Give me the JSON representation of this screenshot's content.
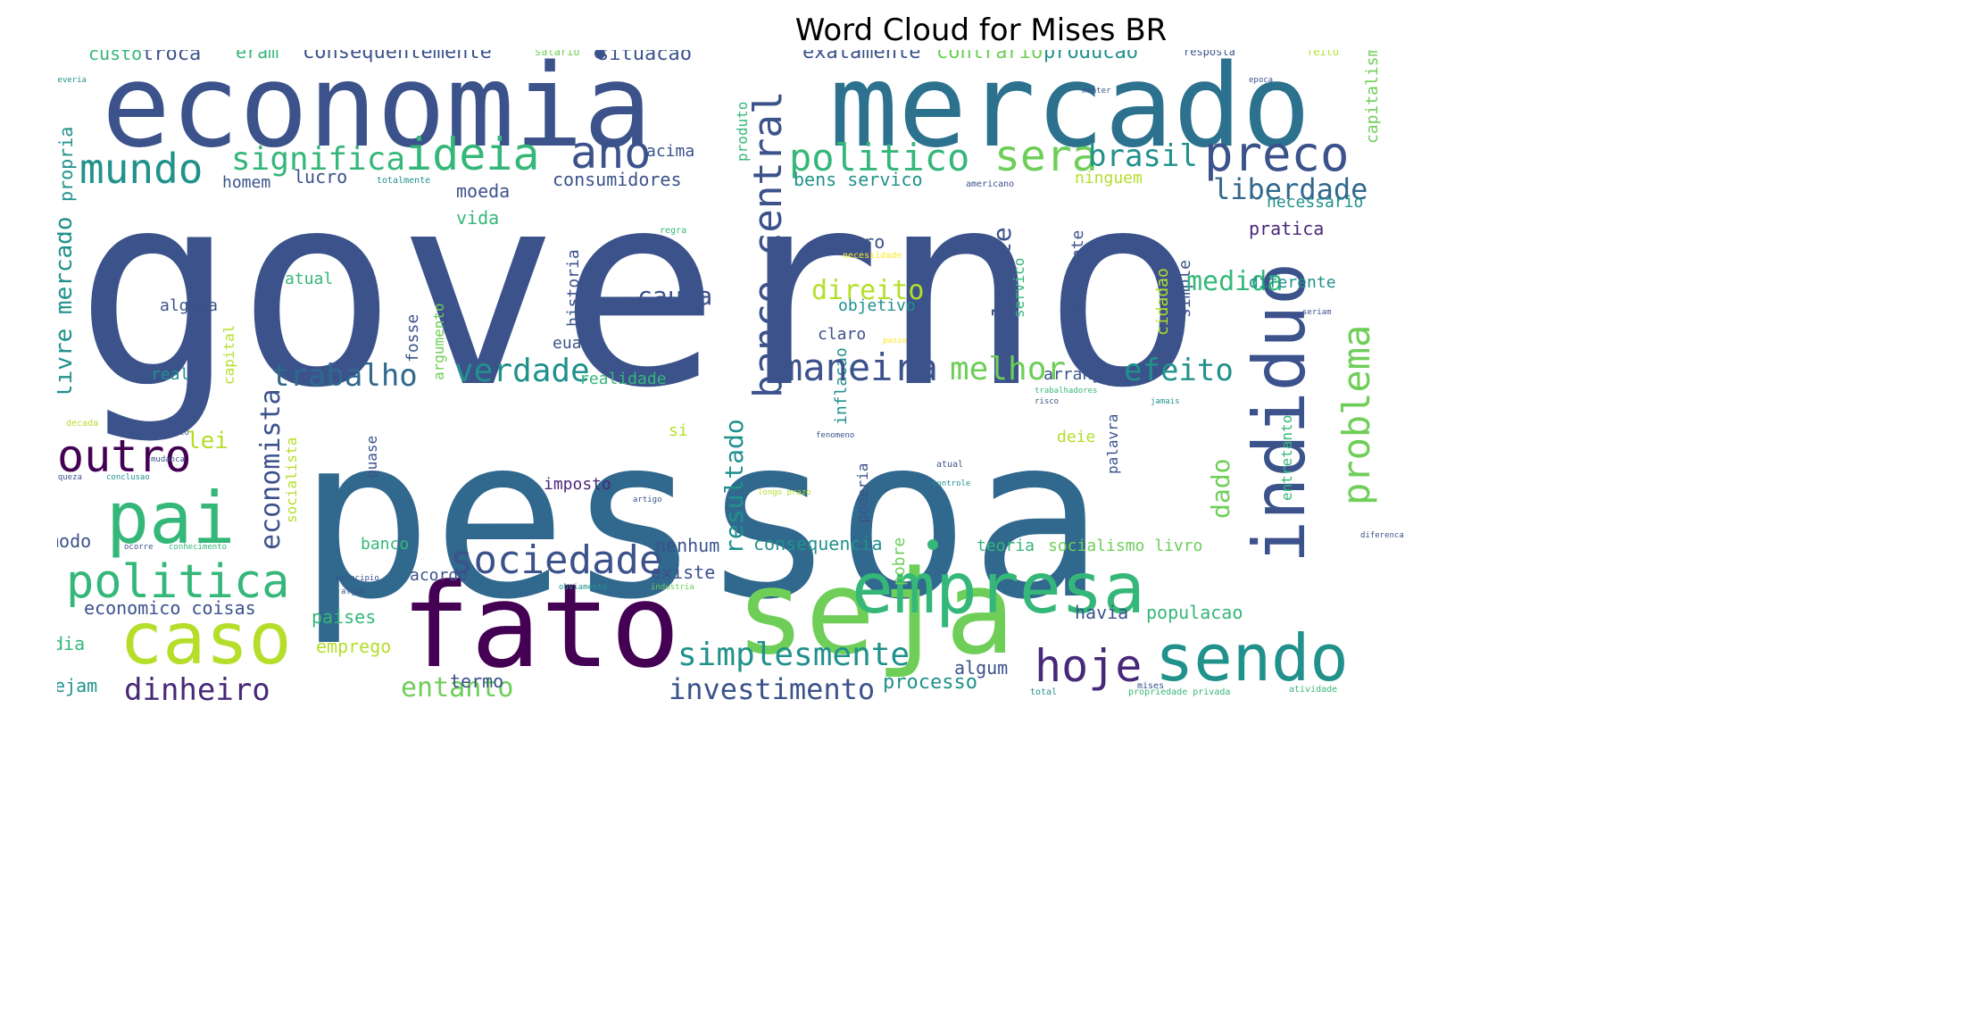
{
  "title": "Word Cloud for Mises BR",
  "palette": {
    "dark_purple": "#440154",
    "indigo": "#3b528b",
    "blue": "#31688e",
    "teal": "#21918c",
    "green": "#35b779",
    "light_green": "#6ece58",
    "lime": "#b5de2b",
    "yellow": "#fde725"
  },
  "words": [
    {
      "text": "governo",
      "color": "#3b528b"
    },
    {
      "text": "pessoa",
      "color": "#31688e"
    },
    {
      "text": "economia",
      "color": "#3b528b"
    },
    {
      "text": "mercado",
      "color": "#2c728e"
    },
    {
      "text": "fato",
      "color": "#440154"
    },
    {
      "text": "seja",
      "color": "#6ece58"
    },
    {
      "text": "pai",
      "color": "#35b779"
    },
    {
      "text": "caso",
      "color": "#b5de2b"
    },
    {
      "text": "empresa",
      "color": "#35b779"
    },
    {
      "text": "sendo",
      "color": "#21918c"
    },
    {
      "text": "indiduo",
      "color": "#3b528b"
    },
    {
      "text": "politica",
      "color": "#35b779"
    },
    {
      "text": "banco central",
      "color": "#3b528b"
    },
    {
      "text": "outro",
      "color": "#440154"
    },
    {
      "text": "ideia",
      "color": "#35b779"
    },
    {
      "text": "ano",
      "color": "#3b528b"
    },
    {
      "text": "mundo",
      "color": "#21918c"
    },
    {
      "text": "sociedade",
      "color": "#3b528b"
    },
    {
      "text": "hoje",
      "color": "#482878"
    },
    {
      "text": "preco",
      "color": "#3b528b"
    },
    {
      "text": "problema",
      "color": "#6ece58"
    },
    {
      "text": "politico",
      "color": "#35b779"
    },
    {
      "text": "sera",
      "color": "#6ece58"
    },
    {
      "text": "maneira",
      "color": "#3b528b"
    },
    {
      "text": "brasil",
      "color": "#21918c"
    },
    {
      "text": "liberdade",
      "color": "#31688e"
    },
    {
      "text": "significa",
      "color": "#35b779"
    },
    {
      "text": "trabalho",
      "color": "#31688e"
    },
    {
      "text": "verdade",
      "color": "#21918c"
    },
    {
      "text": "melhor",
      "color": "#6ece58"
    },
    {
      "text": "efeito",
      "color": "#21918c"
    },
    {
      "text": "simplesmente",
      "color": "#21918c"
    },
    {
      "text": "investimento",
      "color": "#3b528b"
    },
    {
      "text": "dinheiro",
      "color": "#482878"
    },
    {
      "text": "livre mercado",
      "color": "#6ece58"
    },
    {
      "text": "economista",
      "color": "#21918c"
    },
    {
      "text": "resultado",
      "color": "#3b528b"
    },
    {
      "text": "realmente",
      "color": "#21918c"
    },
    {
      "text": "medida",
      "color": "#3b528b"
    },
    {
      "text": "direito",
      "color": "#b5de2b"
    },
    {
      "text": "causa",
      "color": "#3b528b"
    },
    {
      "text": "dado",
      "color": "#35b779"
    },
    {
      "text": "entanto",
      "color": "#6ece58"
    },
    {
      "text": "lei",
      "color": "#b5de2b"
    },
    {
      "text": "custo",
      "color": "#35b779"
    },
    {
      "text": "troca",
      "color": "#3b528b"
    },
    {
      "text": "eram",
      "color": "#35b779"
    },
    {
      "text": "consequentemente",
      "color": "#3b528b"
    },
    {
      "text": "salario",
      "color": "#6ece58"
    },
    {
      "text": "situacao",
      "color": "#3b528b"
    },
    {
      "text": "exatamente",
      "color": "#3b528b"
    },
    {
      "text": "contrario",
      "color": "#6ece58"
    },
    {
      "text": "producao",
      "color": "#21918c"
    },
    {
      "text": "resposta",
      "color": "#3b528b"
    },
    {
      "text": "feito",
      "color": "#b5de2b"
    },
    {
      "text": "produto",
      "color": "#35b779"
    },
    {
      "text": "acima",
      "color": "#3b528b"
    },
    {
      "text": "lucro",
      "color": "#3b528b"
    },
    {
      "text": "homem",
      "color": "#3b528b"
    },
    {
      "text": "totalmente",
      "color": "#21918c"
    },
    {
      "text": "moeda",
      "color": "#3b528b"
    },
    {
      "text": "consumidores",
      "color": "#3b528b"
    },
    {
      "text": "bens servico",
      "color": "#21918c"
    },
    {
      "text": "ninguem",
      "color": "#b5de2b"
    },
    {
      "text": "americano",
      "color": "#3b528b"
    },
    {
      "text": "necessario",
      "color": "#21918c"
    },
    {
      "text": "vida",
      "color": "#35b779"
    },
    {
      "text": "propria",
      "color": "#482878"
    },
    {
      "text": "capitalismo",
      "color": "#21918c"
    },
    {
      "text": "pratica",
      "color": "#6ece58"
    },
    {
      "text": "futuro",
      "color": "#3b528b"
    },
    {
      "text": "regra",
      "color": "#35b779"
    },
    {
      "text": "necessidade",
      "color": "#fde725"
    },
    {
      "text": "atual",
      "color": "#35b779"
    },
    {
      "text": "importante",
      "color": "#3b528b"
    },
    {
      "text": "servico",
      "color": "#35b779"
    },
    {
      "text": "cidadao",
      "color": "#b5de2b"
    },
    {
      "text": "simple",
      "color": "#3b528b"
    },
    {
      "text": "diferente",
      "color": "#21918c"
    },
    {
      "text": "objetivo",
      "color": "#21918c"
    },
    {
      "text": "claro",
      "color": "#3b528b"
    },
    {
      "text": "historia",
      "color": "#3b528b"
    },
    {
      "text": "alguma",
      "color": "#3b528b"
    },
    {
      "text": "capital",
      "color": "#b5de2b"
    },
    {
      "text": "real",
      "color": "#21918c"
    },
    {
      "text": "fosse",
      "color": "#3b528b"
    },
    {
      "text": "eua",
      "color": "#3b528b"
    },
    {
      "text": "concorrencia",
      "color": "#3b528b"
    },
    {
      "text": "realidade",
      "color": "#35b779"
    },
    {
      "text": "argumento",
      "color": "#6ece58"
    },
    {
      "text": "arranjo",
      "color": "#3b528b"
    },
    {
      "text": "deie",
      "color": "#b5de2b"
    },
    {
      "text": "inflacao",
      "color": "#21918c"
    },
    {
      "text": "si",
      "color": "#b5de2b"
    },
    {
      "text": "socialista",
      "color": "#b5de2b"
    },
    {
      "text": "quase",
      "color": "#3b528b"
    },
    {
      "text": "imposto",
      "color": "#482878"
    },
    {
      "text": "entretanto",
      "color": "#35b779"
    },
    {
      "text": "palavra",
      "color": "#3b528b"
    },
    {
      "text": "poderia",
      "color": "#3b528b"
    },
    {
      "text": "pobre",
      "color": "#6ece58"
    },
    {
      "text": "teoria",
      "color": "#35b779"
    },
    {
      "text": "socialismo livro",
      "color": "#6ece58"
    },
    {
      "text": "consequencia",
      "color": "#21918c"
    },
    {
      "text": "nenhum",
      "color": "#3b528b"
    },
    {
      "text": "banco",
      "color": "#35b779"
    },
    {
      "text": "existe",
      "color": "#3b528b"
    },
    {
      "text": "acordo",
      "color": "#3b528b"
    },
    {
      "text": "havia",
      "color": "#3b528b"
    },
    {
      "text": "populacao",
      "color": "#35b779"
    },
    {
      "text": "paises",
      "color": "#35b779"
    },
    {
      "text": "economico coisas",
      "color": "#3b528b"
    },
    {
      "text": "modo",
      "color": "#3b528b"
    },
    {
      "text": "dia",
      "color": "#35b779"
    },
    {
      "text": "emprego",
      "color": "#b5de2b"
    },
    {
      "text": "sejam",
      "color": "#21918c"
    },
    {
      "text": "termo",
      "color": "#3b528b"
    },
    {
      "text": "algum",
      "color": "#3b528b"
    },
    {
      "text": "processo",
      "color": "#21918c"
    },
    {
      "text": "propriedade privada",
      "color": "#35b779"
    },
    {
      "text": "total",
      "color": "#21918c"
    },
    {
      "text": "atividade",
      "color": "#35b779"
    },
    {
      "text": "mises",
      "color": "#3b528b"
    },
    {
      "text": "trabalhadores",
      "color": "#35b779"
    },
    {
      "text": "jamais",
      "color": "#21918c"
    },
    {
      "text": "risco",
      "color": "#3b528b"
    },
    {
      "text": "fenomeno",
      "color": "#3b528b"
    },
    {
      "text": "atual",
      "color": "#3b528b"
    },
    {
      "text": "controle",
      "color": "#21918c"
    },
    {
      "text": "longo prazo",
      "color": "#b5de2b"
    },
    {
      "text": "artigo",
      "color": "#3b528b"
    },
    {
      "text": "obviamente",
      "color": "#21918c"
    },
    {
      "text": "industria",
      "color": "#6ece58"
    },
    {
      "text": "principio",
      "color": "#3b528b"
    },
    {
      "text": "algum",
      "color": "#3b528b"
    },
    {
      "text": "decada",
      "color": "#b5de2b"
    },
    {
      "text": "publico",
      "color": "#3b528b"
    },
    {
      "text": "mudanca",
      "color": "#3b528b"
    },
    {
      "text": "riqueza",
      "color": "#3b528b"
    },
    {
      "text": "conclusao",
      "color": "#21918c"
    },
    {
      "text": "ocorre",
      "color": "#3b528b"
    },
    {
      "text": "conhecimento",
      "color": "#35b779"
    },
    {
      "text": "manter",
      "color": "#3b528b"
    },
    {
      "text": "epoca",
      "color": "#3b528b"
    },
    {
      "text": "seriam",
      "color": "#3b528b"
    },
    {
      "text": "passo",
      "color": "#fde725"
    },
    {
      "text": "diferenca",
      "color": "#3b528b"
    },
    {
      "text": "deveria",
      "color": "#21918c"
    }
  ]
}
